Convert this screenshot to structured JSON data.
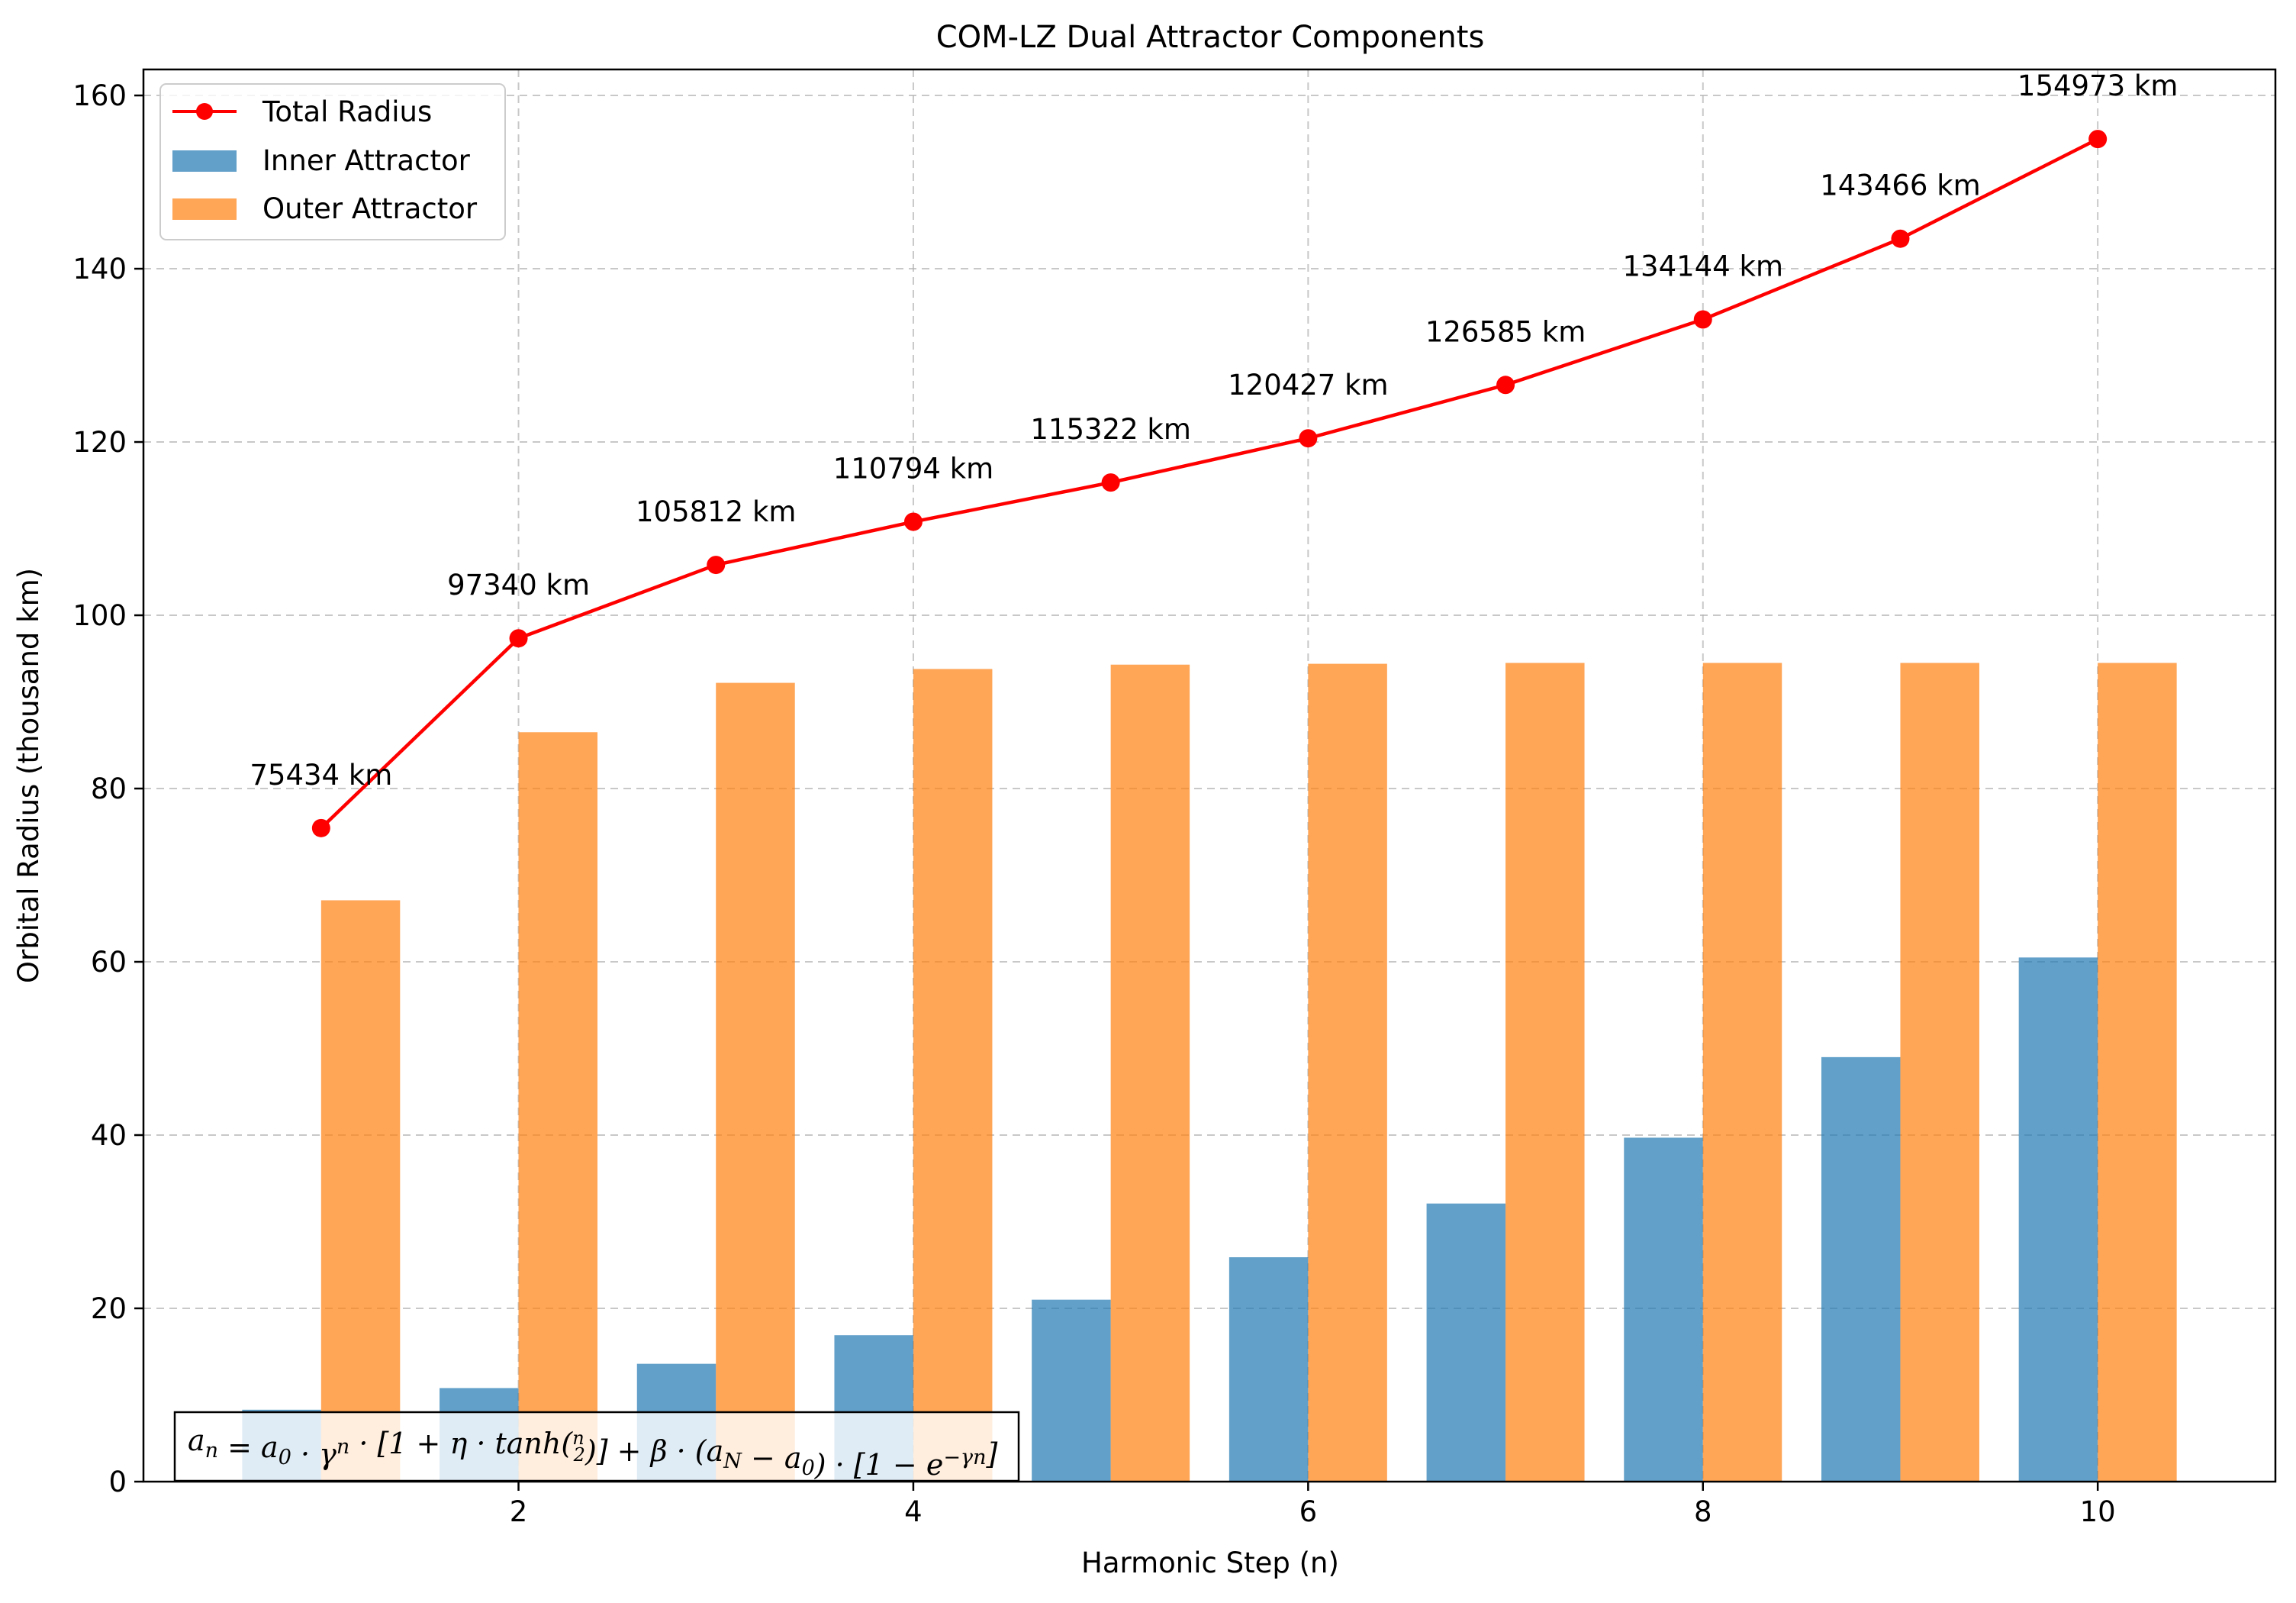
{
  "chart_data": {
    "type": "bar",
    "title": "COM-LZ Dual Attractor Components",
    "xlabel": "Harmonic Step (n)",
    "ylabel": "Orbital Radius (thousand km)",
    "x": [
      1,
      2,
      3,
      4,
      5,
      6,
      7,
      8,
      9,
      10
    ],
    "xlim": [
      0.1,
      10.9
    ],
    "ylim": [
      0,
      163
    ],
    "xticks": [
      2,
      4,
      6,
      8,
      10
    ],
    "yticks": [
      0,
      20,
      40,
      60,
      80,
      100,
      120,
      140,
      160
    ],
    "grid": true,
    "legend_position": "top-left",
    "series": [
      {
        "name": "Total Radius",
        "kind": "line",
        "color": "#ff0000",
        "values": [
          75.434,
          97.34,
          105.812,
          110.794,
          115.322,
          120.427,
          126.585,
          134.144,
          143.466,
          154.973
        ],
        "labels": [
          "75434 km",
          "97340 km",
          "105812 km",
          "110794 km",
          "115322 km",
          "120427 km",
          "126585 km",
          "134144 km",
          "143466 km",
          "154973 km"
        ]
      },
      {
        "name": "Inner Attractor",
        "kind": "bar",
        "color": "#1f77b4",
        "values": [
          8.3,
          10.8,
          13.6,
          16.9,
          21.0,
          25.9,
          32.1,
          39.7,
          49.0,
          60.5
        ]
      },
      {
        "name": "Outer Attractor",
        "kind": "bar",
        "color": "#ff7f0e",
        "values": [
          67.1,
          86.5,
          92.2,
          93.8,
          94.3,
          94.4,
          94.5,
          94.5,
          94.5,
          94.5
        ]
      }
    ],
    "annotation": {
      "formula_parts": [
        "a",
        "n",
        " = a",
        "0",
        " · γ",
        "n",
        " · [1 + η · tanh(",
        "n",
        "2",
        ")] + β · (a",
        "N",
        " − a",
        "0",
        ") · [1 − e",
        "−γn",
        "]"
      ]
    }
  }
}
